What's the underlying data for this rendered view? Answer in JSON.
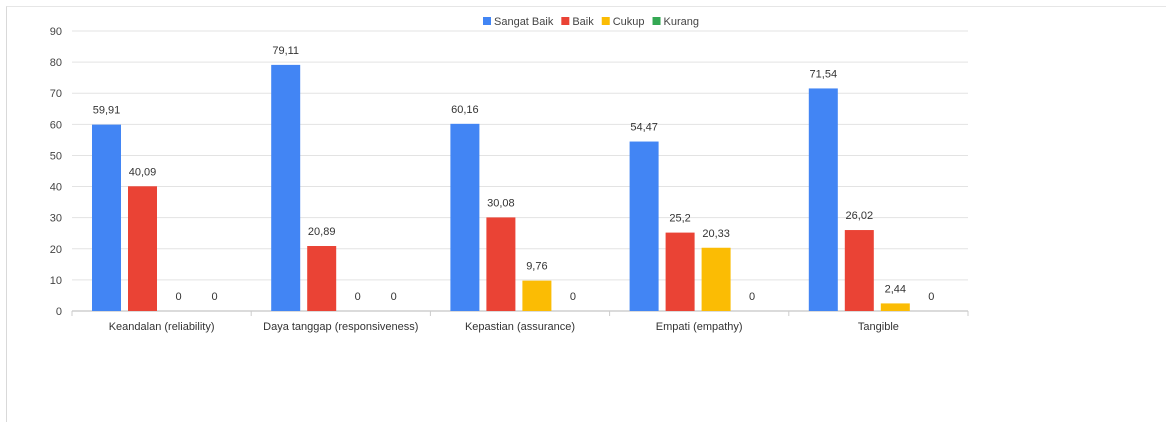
{
  "chart_data": {
    "type": "bar",
    "title": "",
    "xlabel": "",
    "ylabel": "",
    "ylim": [
      0,
      90
    ],
    "yticks": [
      0,
      10,
      20,
      30,
      40,
      50,
      60,
      70,
      80,
      90
    ],
    "grid": true,
    "legend_position": "top-center",
    "categories": [
      "Keandalan (reliability)",
      "Daya tanggap (responsiveness)",
      "Kepastian (assurance)",
      "Empati (empathy)",
      "Tangible"
    ],
    "series": [
      {
        "name": "Sangat Baik",
        "color": "#4285f4",
        "values": [
          59.91,
          79.11,
          60.16,
          54.47,
          71.54
        ],
        "labels": [
          "59,91",
          "79,11",
          "60,16",
          "54,47",
          "71,54"
        ]
      },
      {
        "name": "Baik",
        "color": "#ea4335",
        "values": [
          40.09,
          20.89,
          30.08,
          25.2,
          26.02
        ],
        "labels": [
          "40,09",
          "20,89",
          "30,08",
          "25,2",
          "26,02"
        ]
      },
      {
        "name": "Cukup",
        "color": "#fbbc04",
        "values": [
          0,
          0,
          9.76,
          20.33,
          2.44
        ],
        "labels": [
          "0",
          "0",
          "9,76",
          "20,33",
          "2,44"
        ]
      },
      {
        "name": "Kurang",
        "color": "#34a853",
        "values": [
          0,
          0,
          0,
          0,
          0
        ],
        "labels": [
          "0",
          "0",
          "0",
          "0",
          "0"
        ]
      }
    ]
  }
}
